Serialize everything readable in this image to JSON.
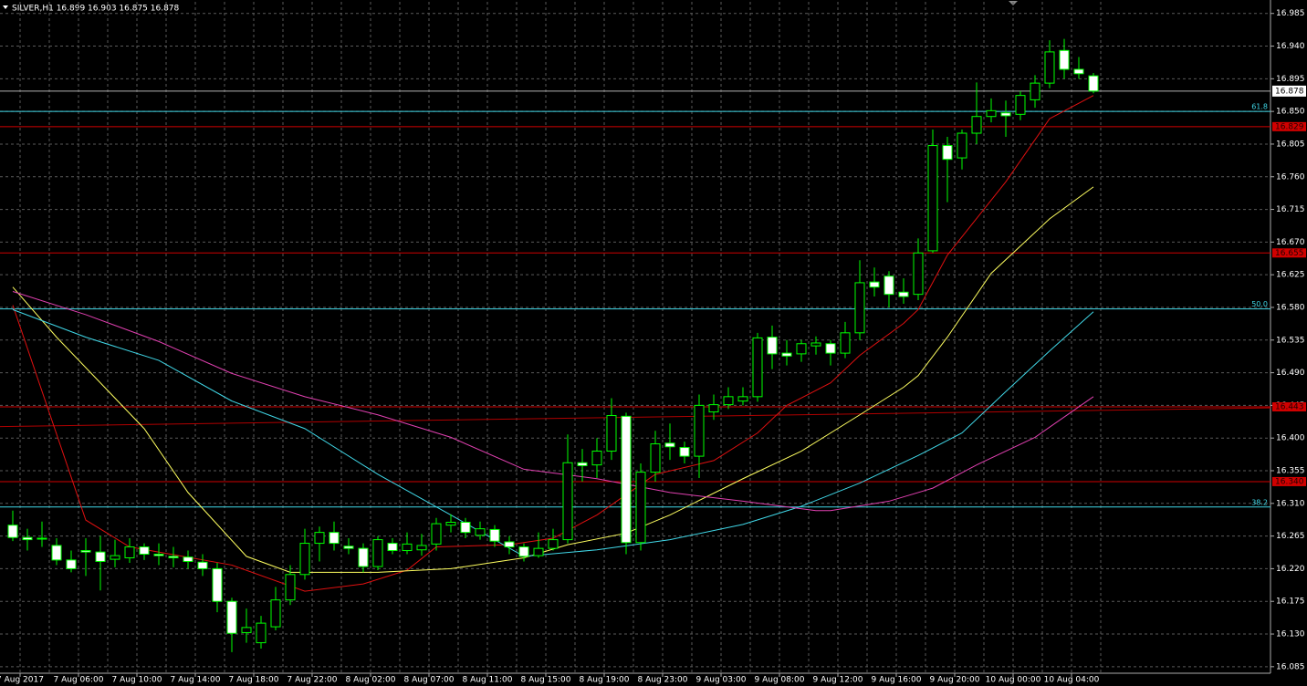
{
  "chart_data": {
    "type": "candlestick",
    "title": "SILVER,H1  16.899 16.903 16.875 16.878",
    "categories": [
      "7 Aug 2017",
      null,
      null,
      null,
      "7 Aug 06:00",
      null,
      null,
      null,
      "7 Aug 10:00",
      null,
      null,
      null,
      "7 Aug 14:00",
      null,
      null,
      null,
      "7 Aug 18:00",
      null,
      null,
      null,
      "7 Aug 22:00",
      null,
      null,
      null,
      "8 Aug 02:00",
      null,
      null,
      null,
      "8 Aug 07:00",
      null,
      null,
      null,
      "8 Aug 11:00",
      null,
      null,
      null,
      "8 Aug 15:00",
      null,
      null,
      null,
      "8 Aug 19:00",
      null,
      null,
      null,
      "8 Aug 23:00",
      null,
      null,
      null,
      "9 Aug 03:00",
      null,
      null,
      null,
      "9 Aug 08:00",
      null,
      null,
      null,
      "9 Aug 12:00",
      null,
      null,
      null,
      "9 Aug 16:00",
      null,
      null,
      null,
      "9 Aug 20:00",
      null,
      null,
      null,
      "10 Aug 00:00",
      null,
      null,
      null,
      "10 Aug 04:00",
      null,
      null
    ],
    "open": [
      16.28,
      16.263,
      16.262,
      16.252,
      16.232,
      16.245,
      16.243,
      16.233,
      16.235,
      16.25,
      16.24,
      16.237,
      16.236,
      16.229,
      16.22,
      16.175,
      16.132,
      16.118,
      16.14,
      16.177,
      16.212,
      16.255,
      16.27,
      16.251,
      16.248,
      16.223,
      16.255,
      16.245,
      16.246,
      16.254,
      16.28,
      16.284,
      16.266,
      16.274,
      16.257,
      16.25,
      16.238,
      16.248,
      16.26,
      16.366,
      16.363,
      16.382,
      16.43,
      16.256,
      16.353,
      16.393,
      16.387,
      16.375,
      16.436,
      16.446,
      16.451,
      16.457,
      16.539,
      16.517,
      16.516,
      16.527,
      16.53,
      16.517,
      16.545,
      16.615,
      16.623,
      16.601,
      16.598,
      16.658,
      16.803,
      16.786,
      16.82,
      16.843,
      16.848,
      16.846,
      16.866,
      16.889,
      16.934,
      16.908,
      16.899
    ],
    "high": [
      16.3,
      16.275,
      16.285,
      16.262,
      16.245,
      16.262,
      16.265,
      16.26,
      16.262,
      16.255,
      16.255,
      16.25,
      16.245,
      16.24,
      16.228,
      16.18,
      16.165,
      16.155,
      16.195,
      16.225,
      16.275,
      16.278,
      16.285,
      16.262,
      16.255,
      16.265,
      16.262,
      16.27,
      16.268,
      16.29,
      16.295,
      16.29,
      16.285,
      16.28,
      16.265,
      16.255,
      16.27,
      16.275,
      16.405,
      16.385,
      16.4,
      16.455,
      16.435,
      16.365,
      16.41,
      16.42,
      16.395,
      16.46,
      16.46,
      16.47,
      16.47,
      16.545,
      16.555,
      16.535,
      16.535,
      16.54,
      16.535,
      16.56,
      16.645,
      16.635,
      16.63,
      16.62,
      16.675,
      16.825,
      16.815,
      16.825,
      16.89,
      16.868,
      16.865,
      16.878,
      16.9,
      16.948,
      16.95,
      16.925,
      16.903
    ],
    "low": [
      16.258,
      16.245,
      16.25,
      16.225,
      16.215,
      16.21,
      16.19,
      16.222,
      16.228,
      16.232,
      16.225,
      16.222,
      16.22,
      16.21,
      16.16,
      16.105,
      16.118,
      16.11,
      16.135,
      16.17,
      16.205,
      16.23,
      16.245,
      16.24,
      16.215,
      16.218,
      16.24,
      16.24,
      16.238,
      16.245,
      16.27,
      16.262,
      16.26,
      16.25,
      16.24,
      16.23,
      16.235,
      16.245,
      16.255,
      16.34,
      16.345,
      16.37,
      16.24,
      16.245,
      16.34,
      16.37,
      16.365,
      16.345,
      16.425,
      16.44,
      16.445,
      16.45,
      16.495,
      16.5,
      16.505,
      16.515,
      16.5,
      16.51,
      16.535,
      16.595,
      16.58,
      16.585,
      16.59,
      16.655,
      16.725,
      16.77,
      16.805,
      16.835,
      16.815,
      16.838,
      16.855,
      16.882,
      16.895,
      16.895,
      16.875
    ],
    "close": [
      16.263,
      16.26,
      16.262,
      16.232,
      16.22,
      16.243,
      16.23,
      16.238,
      16.25,
      16.24,
      16.238,
      16.235,
      16.23,
      16.22,
      16.175,
      16.131,
      16.139,
      16.145,
      16.177,
      16.212,
      16.255,
      16.27,
      16.255,
      16.248,
      16.223,
      16.26,
      16.245,
      16.254,
      16.252,
      16.282,
      16.284,
      16.27,
      16.275,
      16.258,
      16.25,
      16.237,
      16.248,
      16.26,
      16.366,
      16.362,
      16.382,
      16.431,
      16.256,
      16.353,
      16.392,
      16.388,
      16.375,
      16.445,
      16.446,
      16.457,
      16.457,
      16.538,
      16.516,
      16.513,
      16.53,
      16.531,
      16.517,
      16.545,
      16.614,
      16.608,
      16.598,
      16.595,
      16.655,
      16.803,
      16.784,
      16.82,
      16.843,
      16.851,
      16.844,
      16.872,
      16.889,
      16.932,
      16.908,
      16.902,
      16.878
    ],
    "wick_color": "#00ff00",
    "bull_body": "#000000",
    "bear_body": "#ffffff",
    "ylim": [
      16.076,
      17.001
    ],
    "yticks": [
      16.985,
      {
        "value": 16.94,
        "label": "16.940"
      },
      16.895,
      {
        "value": 16.85,
        "label": "16.850"
      },
      16.805,
      {
        "value": 16.76,
        "label": "16.760"
      },
      16.715,
      {
        "value": 16.67,
        "label": "16.670"
      },
      16.625,
      {
        "value": 16.58,
        "label": "16.580"
      },
      16.535,
      {
        "value": 16.49,
        "label": "16.490"
      },
      16.445,
      {
        "value": 16.4,
        "label": "16.400"
      },
      16.355,
      {
        "value": 16.31,
        "label": "16.310"
      },
      16.265,
      {
        "value": 16.22,
        "label": "16.220"
      },
      16.175,
      {
        "value": 16.13,
        "label": "16.130"
      },
      16.085
    ],
    "grid": true,
    "moving_averages": [
      {
        "color": "#e01010",
        "x": [
          0,
          5,
          8,
          15,
          20,
          24,
          27,
          29,
          34,
          37,
          40,
          44,
          48,
          51,
          53,
          56,
          58,
          61,
          62,
          64,
          68,
          71,
          74
        ],
        "values": [
          16.583,
          16.287,
          16.25,
          16.225,
          16.189,
          16.199,
          16.218,
          16.25,
          16.253,
          16.262,
          16.294,
          16.35,
          16.369,
          16.407,
          16.445,
          16.476,
          16.514,
          16.558,
          16.577,
          16.652,
          16.753,
          16.84,
          16.872
        ]
      },
      {
        "color": "#ffff60",
        "x": [
          0,
          3,
          9,
          12,
          16,
          19,
          25,
          30,
          35,
          38,
          42,
          45,
          50,
          54,
          58,
          61,
          62,
          64,
          67,
          71,
          74
        ],
        "values": [
          16.608,
          16.539,
          16.413,
          16.325,
          16.237,
          16.215,
          16.215,
          16.22,
          16.235,
          16.253,
          16.269,
          16.294,
          16.344,
          16.382,
          16.432,
          16.47,
          16.486,
          16.539,
          16.627,
          16.702,
          16.746
        ]
      },
      {
        "color": "#40d8e8",
        "x": [
          0,
          5,
          10,
          15,
          20,
          25,
          30,
          35,
          40,
          45,
          50,
          54,
          58,
          62,
          65,
          68,
          71,
          74
        ],
        "values": [
          16.577,
          16.539,
          16.507,
          16.451,
          16.413,
          16.35,
          16.294,
          16.237,
          16.246,
          16.26,
          16.281,
          16.306,
          16.338,
          16.376,
          16.407,
          16.464,
          16.52,
          16.574
        ]
      },
      {
        "color": "#e040b0",
        "x": [
          0,
          5,
          10,
          15,
          20,
          25,
          30,
          35,
          40,
          45,
          50,
          55,
          56,
          60,
          63,
          66,
          70,
          74
        ],
        "values": [
          16.602,
          16.57,
          16.533,
          16.489,
          16.457,
          16.432,
          16.401,
          16.357,
          16.344,
          16.325,
          16.313,
          16.3,
          16.3,
          16.313,
          16.331,
          16.363,
          16.401,
          16.457
        ]
      }
    ],
    "trendline": {
      "color": "#b00000",
      "x": [
        0,
        74
      ],
      "values": [
        16.416,
        16.438
      ]
    },
    "levels": [
      16.829,
      16.655,
      16.443,
      {
        "value": 16.34,
        "label": "16.340"
      }
    ],
    "level_color": "#d00000",
    "current_price": 16.878,
    "current_color": "#b0b0b0",
    "fib_color": "#40d8e8",
    "fib_levels": [
      {
        "label": "61.8",
        "value": 16.85
      },
      {
        "label": "50.0",
        "value": 16.578
      },
      {
        "label": "38.2",
        "value": 16.305
      }
    ]
  }
}
